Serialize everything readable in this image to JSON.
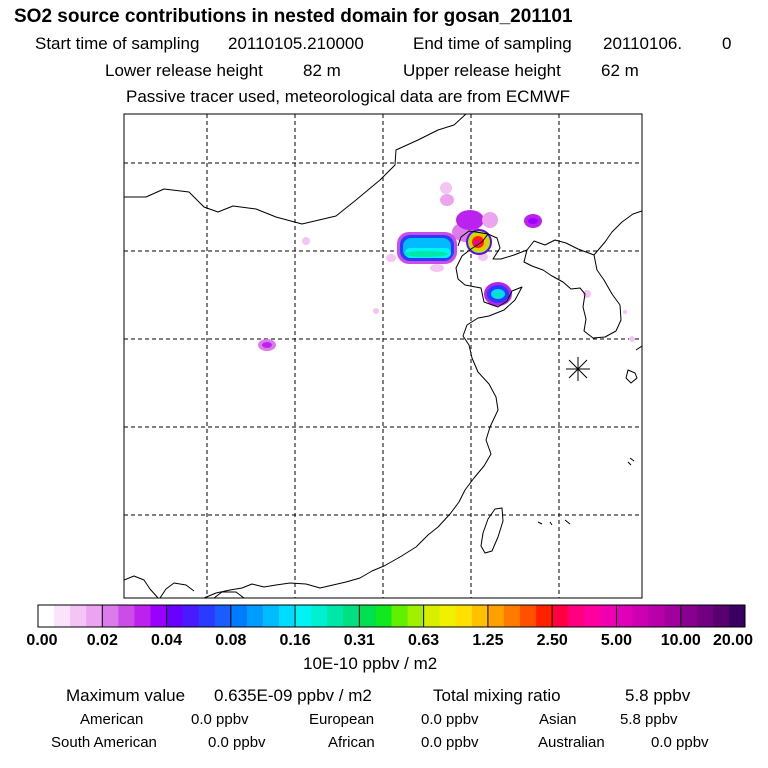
{
  "title": "SO2 source contributions in nested domain for gosan_201101",
  "sampling": {
    "start_label": "Start time of sampling",
    "start_value": "20110105.210000",
    "end_label": "End time of sampling",
    "end_value": "20110106.",
    "end_hour": "0"
  },
  "release": {
    "lower_label": "Lower release height",
    "lower_value": "82 m",
    "upper_label": "Upper release height",
    "upper_value": "62 m"
  },
  "note": "Passive tracer used, meteorological data are from ECMWF",
  "colorbar": {
    "labels": [
      "0.00",
      "0.02",
      "0.04",
      "0.08",
      "0.16",
      "0.31",
      "0.63",
      "1.25",
      "2.50",
      "5.00",
      "10.00",
      "20.00"
    ],
    "colors": [
      "#ffffff",
      "#fbe4fb",
      "#f4c4f4",
      "#eca4f0",
      "#dc7cec",
      "#cc4ce8",
      "#bb22ee",
      "#9a00ff",
      "#6a00ff",
      "#4a1aff",
      "#2a3aff",
      "#1a5cff",
      "#007cff",
      "#009cff",
      "#00bcff",
      "#00dcff",
      "#00f4f4",
      "#00f0d0",
      "#00e8a8",
      "#00e080",
      "#00e050",
      "#10e820",
      "#60f000",
      "#a0f000",
      "#d8f000",
      "#f0f000",
      "#ffe000",
      "#ffc000",
      "#ffa000",
      "#ff7a00",
      "#ff5000",
      "#ff2000",
      "#ff0040",
      "#ff0080",
      "#ff00a0",
      "#f000b0",
      "#e000b8",
      "#cc00b0",
      "#b800a8",
      "#a0009c",
      "#880090",
      "#700080",
      "#580070",
      "#3a0060"
    ],
    "unit": "10E-10 ppbv / m2"
  },
  "stats": {
    "max_label": "Maximum value",
    "max_value": "0.635E-09 ppbv / m2",
    "total_label": "Total mixing ratio",
    "total_value": "5.8 ppbv"
  },
  "regions": [
    {
      "name": "American",
      "value": "0.0 ppbv"
    },
    {
      "name": "European",
      "value": "0.0 ppbv"
    },
    {
      "name": "Asian",
      "value": "5.8 ppbv"
    },
    {
      "name": "South American",
      "value": "0.0 ppbv"
    },
    {
      "name": "African",
      "value": "0.0 ppbv"
    },
    {
      "name": "Australian",
      "value": "0.0 ppbv"
    }
  ]
}
